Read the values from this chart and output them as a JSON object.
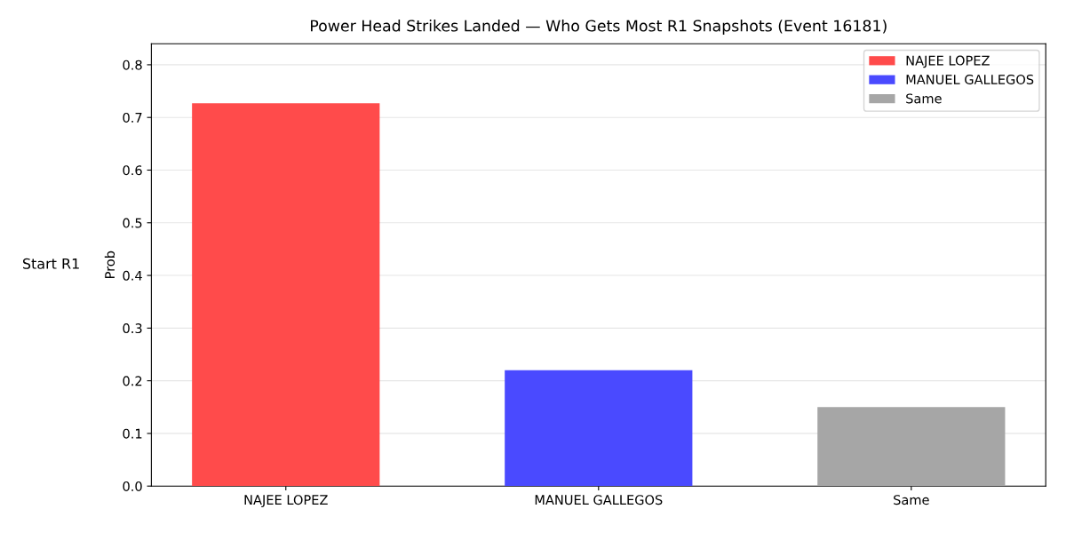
{
  "chart_data": {
    "type": "bar",
    "title": "Power Head Strikes Landed — Who Gets Most R1 Snapshots (Event 16181)",
    "ylabel": "Prob",
    "annotations": [
      "Start R1"
    ],
    "categories": [
      "NAJEE LOPEZ",
      "MANUEL GALLEGOS",
      "Same"
    ],
    "series": [
      {
        "name": "NAJEE LOPEZ",
        "color": "#ff4b4b",
        "values": [
          0.727,
          null,
          null
        ]
      },
      {
        "name": "MANUEL GALLEGOS",
        "color": "#4a4aff",
        "values": [
          null,
          0.22,
          null
        ]
      },
      {
        "name": "Same",
        "color": "#a6a6a6",
        "values": [
          null,
          null,
          0.15
        ]
      }
    ],
    "ylim": [
      0,
      0.84
    ],
    "yticks": [
      {
        "value": 0,
        "label": "0.0"
      },
      0.1,
      0.2,
      0.3,
      0.4,
      0.5,
      0.6,
      0.7,
      0.8
    ],
    "grid": "y",
    "legend": "top right"
  }
}
